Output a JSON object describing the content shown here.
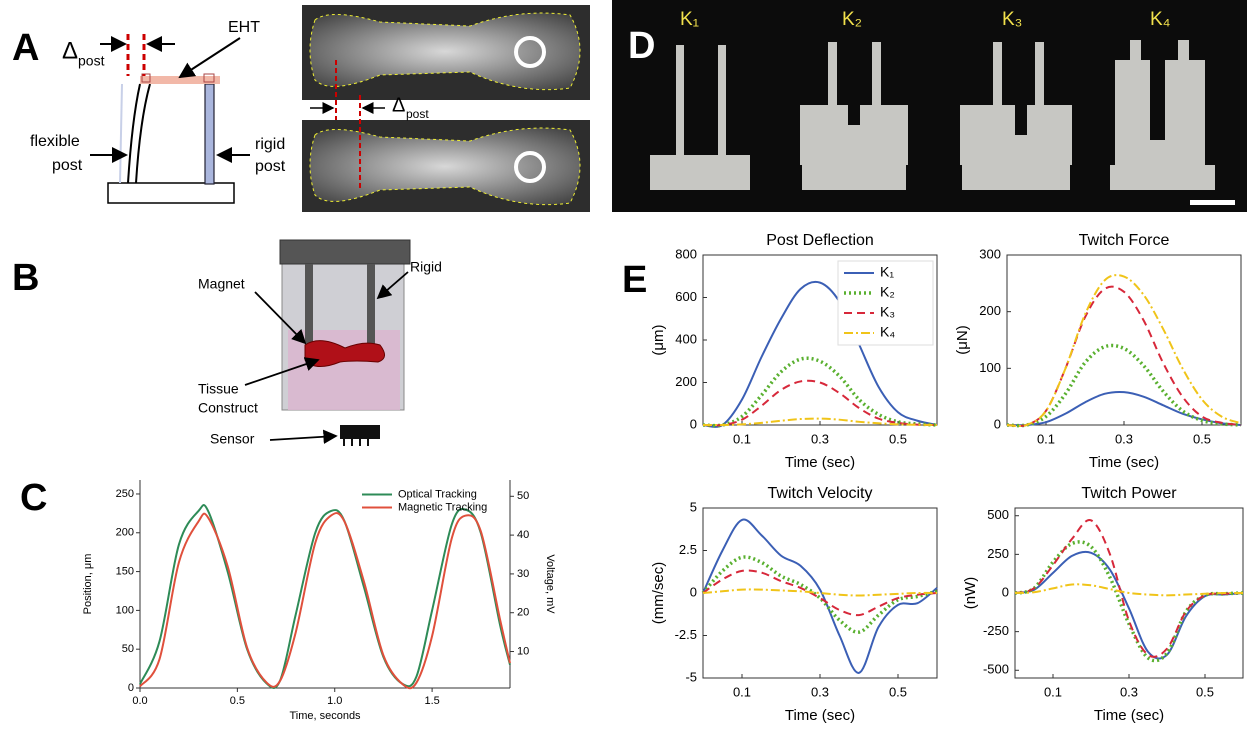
{
  "panel_a": {
    "label": "A",
    "delta_left": {
      "symbol": "Δ",
      "sub": "post"
    },
    "eht": "EHT",
    "flexible": [
      "flexible",
      "post"
    ],
    "rigid": [
      "rigid",
      "post"
    ],
    "delta_photo": {
      "symbol": "Δ",
      "sub": "post"
    }
  },
  "panel_b": {
    "label": "B",
    "magnet": "Magnet",
    "rigid": "Rigid",
    "tissue": [
      "Tissue",
      "Construct"
    ],
    "sensor": "Sensor"
  },
  "panel_d": {
    "label": "D",
    "stiffness": [
      "K₁",
      "K₂",
      "K₃",
      "K₄"
    ]
  },
  "chart_data": [
    {
      "type": "line",
      "panel_label": "C",
      "xlabel": "Time, seconds",
      "ylabel": "Position, μm",
      "y2label": "Voltage, mV",
      "x": [
        0,
        0.1,
        0.2,
        0.3,
        0.35,
        0.45,
        0.55,
        0.65,
        0.72,
        0.8,
        0.9,
        0.98,
        1.05,
        1.15,
        1.25,
        1.35,
        1.42,
        1.5,
        1.6,
        1.67,
        1.75,
        1.85,
        1.9
      ],
      "series": [
        {
          "name": "Optical Tracking",
          "color": "#2e8b57",
          "dash": "solid",
          "values": [
            5,
            60,
            185,
            228,
            228,
            150,
            50,
            6,
            10,
            95,
            200,
            228,
            215,
            130,
            40,
            5,
            15,
            100,
            210,
            230,
            200,
            80,
            30
          ]
        },
        {
          "name": "Magnetic Tracking",
          "color": "#e0503c",
          "dash": "solid",
          "axis": "y2",
          "values": [
            1,
            8,
            33,
            43.5,
            44.5,
            32,
            11,
            2,
            2.5,
            15,
            38,
            45,
            43.5,
            28,
            9,
            1.5,
            2,
            14,
            39,
            45,
            41,
            18,
            7
          ]
        }
      ],
      "xlim": [
        0,
        1.9
      ],
      "xticks": [
        {
          "value": 0,
          "label": "0.0"
        },
        0.5,
        {
          "value": 1,
          "label": "1.0"
        },
        1.5
      ],
      "ylim": [
        0,
        268
      ],
      "yticks": [
        0,
        50,
        100,
        150,
        200,
        250
      ],
      "y2lim": [
        0.6,
        54.2
      ],
      "y2ticks": [
        10,
        20,
        30,
        40,
        50
      ],
      "legend": "top-right",
      "box": false
    },
    {
      "type": "line",
      "panel_label": "E",
      "title": "Post Deflection",
      "xlabel": "Time (sec)",
      "ylabel": "(μm)",
      "x": [
        0,
        0.05,
        0.1,
        0.15,
        0.2,
        0.25,
        0.3,
        0.35,
        0.4,
        0.45,
        0.5,
        0.55,
        0.6
      ],
      "series": [
        {
          "name": "K₁",
          "color": "#3b5fb5",
          "dash": "solid",
          "values": [
            0,
            0,
            120,
            320,
            500,
            640,
            670,
            580,
            380,
            180,
            60,
            20,
            0
          ]
        },
        {
          "name": "K₂",
          "color": "#59b02f",
          "dash": "dotted",
          "values": [
            0,
            0,
            40,
            140,
            250,
            310,
            300,
            230,
            120,
            50,
            15,
            5,
            0
          ]
        },
        {
          "name": "K₃",
          "color": "#d7283a",
          "dash": "dashed",
          "values": [
            0,
            0,
            25,
            90,
            165,
            205,
            200,
            150,
            80,
            30,
            10,
            2,
            0
          ]
        },
        {
          "name": "K₄",
          "color": "#f0c419",
          "dash": "dash-dot",
          "values": [
            0,
            0,
            3,
            10,
            20,
            28,
            30,
            25,
            15,
            8,
            3,
            1,
            0
          ]
        }
      ],
      "xlim": [
        0,
        0.6
      ],
      "xticks": [
        0.1,
        0.3,
        0.5
      ],
      "ylim": [
        0,
        800
      ],
      "yticks": [
        0,
        200,
        400,
        600,
        800
      ],
      "legend": "top-right",
      "box": true
    },
    {
      "type": "line",
      "title": "Twitch Force",
      "xlabel": "Time (sec)",
      "ylabel": "(μN)",
      "x": [
        0,
        0.05,
        0.1,
        0.15,
        0.2,
        0.25,
        0.3,
        0.35,
        0.4,
        0.45,
        0.5,
        0.55,
        0.6
      ],
      "series": [
        {
          "name": "K₁",
          "color": "#3b5fb5",
          "dash": "solid",
          "values": [
            0,
            0,
            5,
            20,
            40,
            55,
            58,
            50,
            35,
            20,
            10,
            3,
            0
          ]
        },
        {
          "name": "K₂",
          "color": "#59b02f",
          "dash": "dotted",
          "values": [
            0,
            0,
            15,
            55,
            110,
            138,
            135,
            105,
            60,
            25,
            8,
            2,
            0
          ]
        },
        {
          "name": "K₃",
          "color": "#d7283a",
          "dash": "dashed",
          "values": [
            0,
            0,
            25,
            100,
            190,
            240,
            235,
            185,
            110,
            50,
            15,
            4,
            0
          ]
        },
        {
          "name": "K₄",
          "color": "#f0c419",
          "dash": "dash-dot",
          "values": [
            0,
            0,
            25,
            100,
            195,
            255,
            262,
            230,
            170,
            100,
            45,
            15,
            3
          ]
        }
      ],
      "xlim": [
        0,
        0.6
      ],
      "xticks": [
        0.1,
        0.3,
        0.5
      ],
      "ylim": [
        0,
        300
      ],
      "yticks": [
        0,
        100,
        200,
        300
      ],
      "box": true
    },
    {
      "type": "line",
      "title": "Twitch Velocity",
      "xlabel": "Time (sec)",
      "ylabel": "(mm/sec)",
      "x": [
        0,
        0.05,
        0.1,
        0.15,
        0.2,
        0.25,
        0.3,
        0.35,
        0.4,
        0.45,
        0.5,
        0.55,
        0.6
      ],
      "series": [
        {
          "name": "K₁",
          "color": "#3b5fb5",
          "dash": "solid",
          "values": [
            0,
            2.5,
            4.3,
            3.4,
            2.2,
            1.6,
            0.2,
            -2.5,
            -4.7,
            -2,
            -0.7,
            -0.6,
            0.3
          ]
        },
        {
          "name": "K₂",
          "color": "#59b02f",
          "dash": "dotted",
          "values": [
            0,
            1.3,
            2.1,
            1.8,
            1,
            0.5,
            -0.3,
            -1.6,
            -2.3,
            -1.3,
            -0.4,
            -0.2,
            0.1
          ]
        },
        {
          "name": "K₃",
          "color": "#d7283a",
          "dash": "dashed",
          "values": [
            0,
            0.8,
            1.3,
            1.2,
            0.7,
            0.3,
            -0.3,
            -1,
            -1.3,
            -0.8,
            -0.3,
            -0.1,
            0
          ]
        },
        {
          "name": "K₄",
          "color": "#f0c419",
          "dash": "dash-dot",
          "values": [
            0,
            0.1,
            0.2,
            0.2,
            0.15,
            0.1,
            0,
            -0.1,
            -0.15,
            -0.1,
            -0.05,
            0,
            0
          ]
        }
      ],
      "xlim": [
        0,
        0.6
      ],
      "xticks": [
        0.1,
        0.3,
        0.5
      ],
      "ylim": [
        -5,
        5
      ],
      "yticks": [
        -5,
        -2.5,
        0,
        2.5,
        5
      ],
      "box": true
    },
    {
      "type": "line",
      "title": "Twitch Power",
      "xlabel": "Time (sec)",
      "ylabel": "(nW)",
      "x": [
        0,
        0.05,
        0.1,
        0.15,
        0.2,
        0.25,
        0.3,
        0.35,
        0.4,
        0.45,
        0.5,
        0.55,
        0.6
      ],
      "series": [
        {
          "name": "K₁",
          "color": "#3b5fb5",
          "dash": "solid",
          "values": [
            0,
            20,
            130,
            240,
            260,
            150,
            -100,
            -380,
            -400,
            -150,
            -20,
            -10,
            0
          ]
        },
        {
          "name": "K₂",
          "color": "#59b02f",
          "dash": "dotted",
          "values": [
            0,
            30,
            200,
            320,
            300,
            100,
            -200,
            -420,
            -390,
            -120,
            -15,
            -5,
            0
          ]
        },
        {
          "name": "K₃",
          "color": "#d7283a",
          "dash": "dashed",
          "values": [
            0,
            30,
            180,
            350,
            470,
            250,
            -180,
            -400,
            -360,
            -120,
            -15,
            -5,
            0
          ]
        },
        {
          "name": "K₄",
          "color": "#f0c419",
          "dash": "dash-dot",
          "values": [
            0,
            5,
            30,
            55,
            50,
            25,
            0,
            -10,
            -15,
            -10,
            -5,
            0,
            0
          ]
        }
      ],
      "xlim": [
        0,
        0.6
      ],
      "xticks": [
        0.1,
        0.3,
        0.5
      ],
      "ylim": [
        -550,
        550
      ],
      "yticks": [
        -500,
        -250,
        0,
        250,
        500
      ],
      "box": true
    }
  ]
}
